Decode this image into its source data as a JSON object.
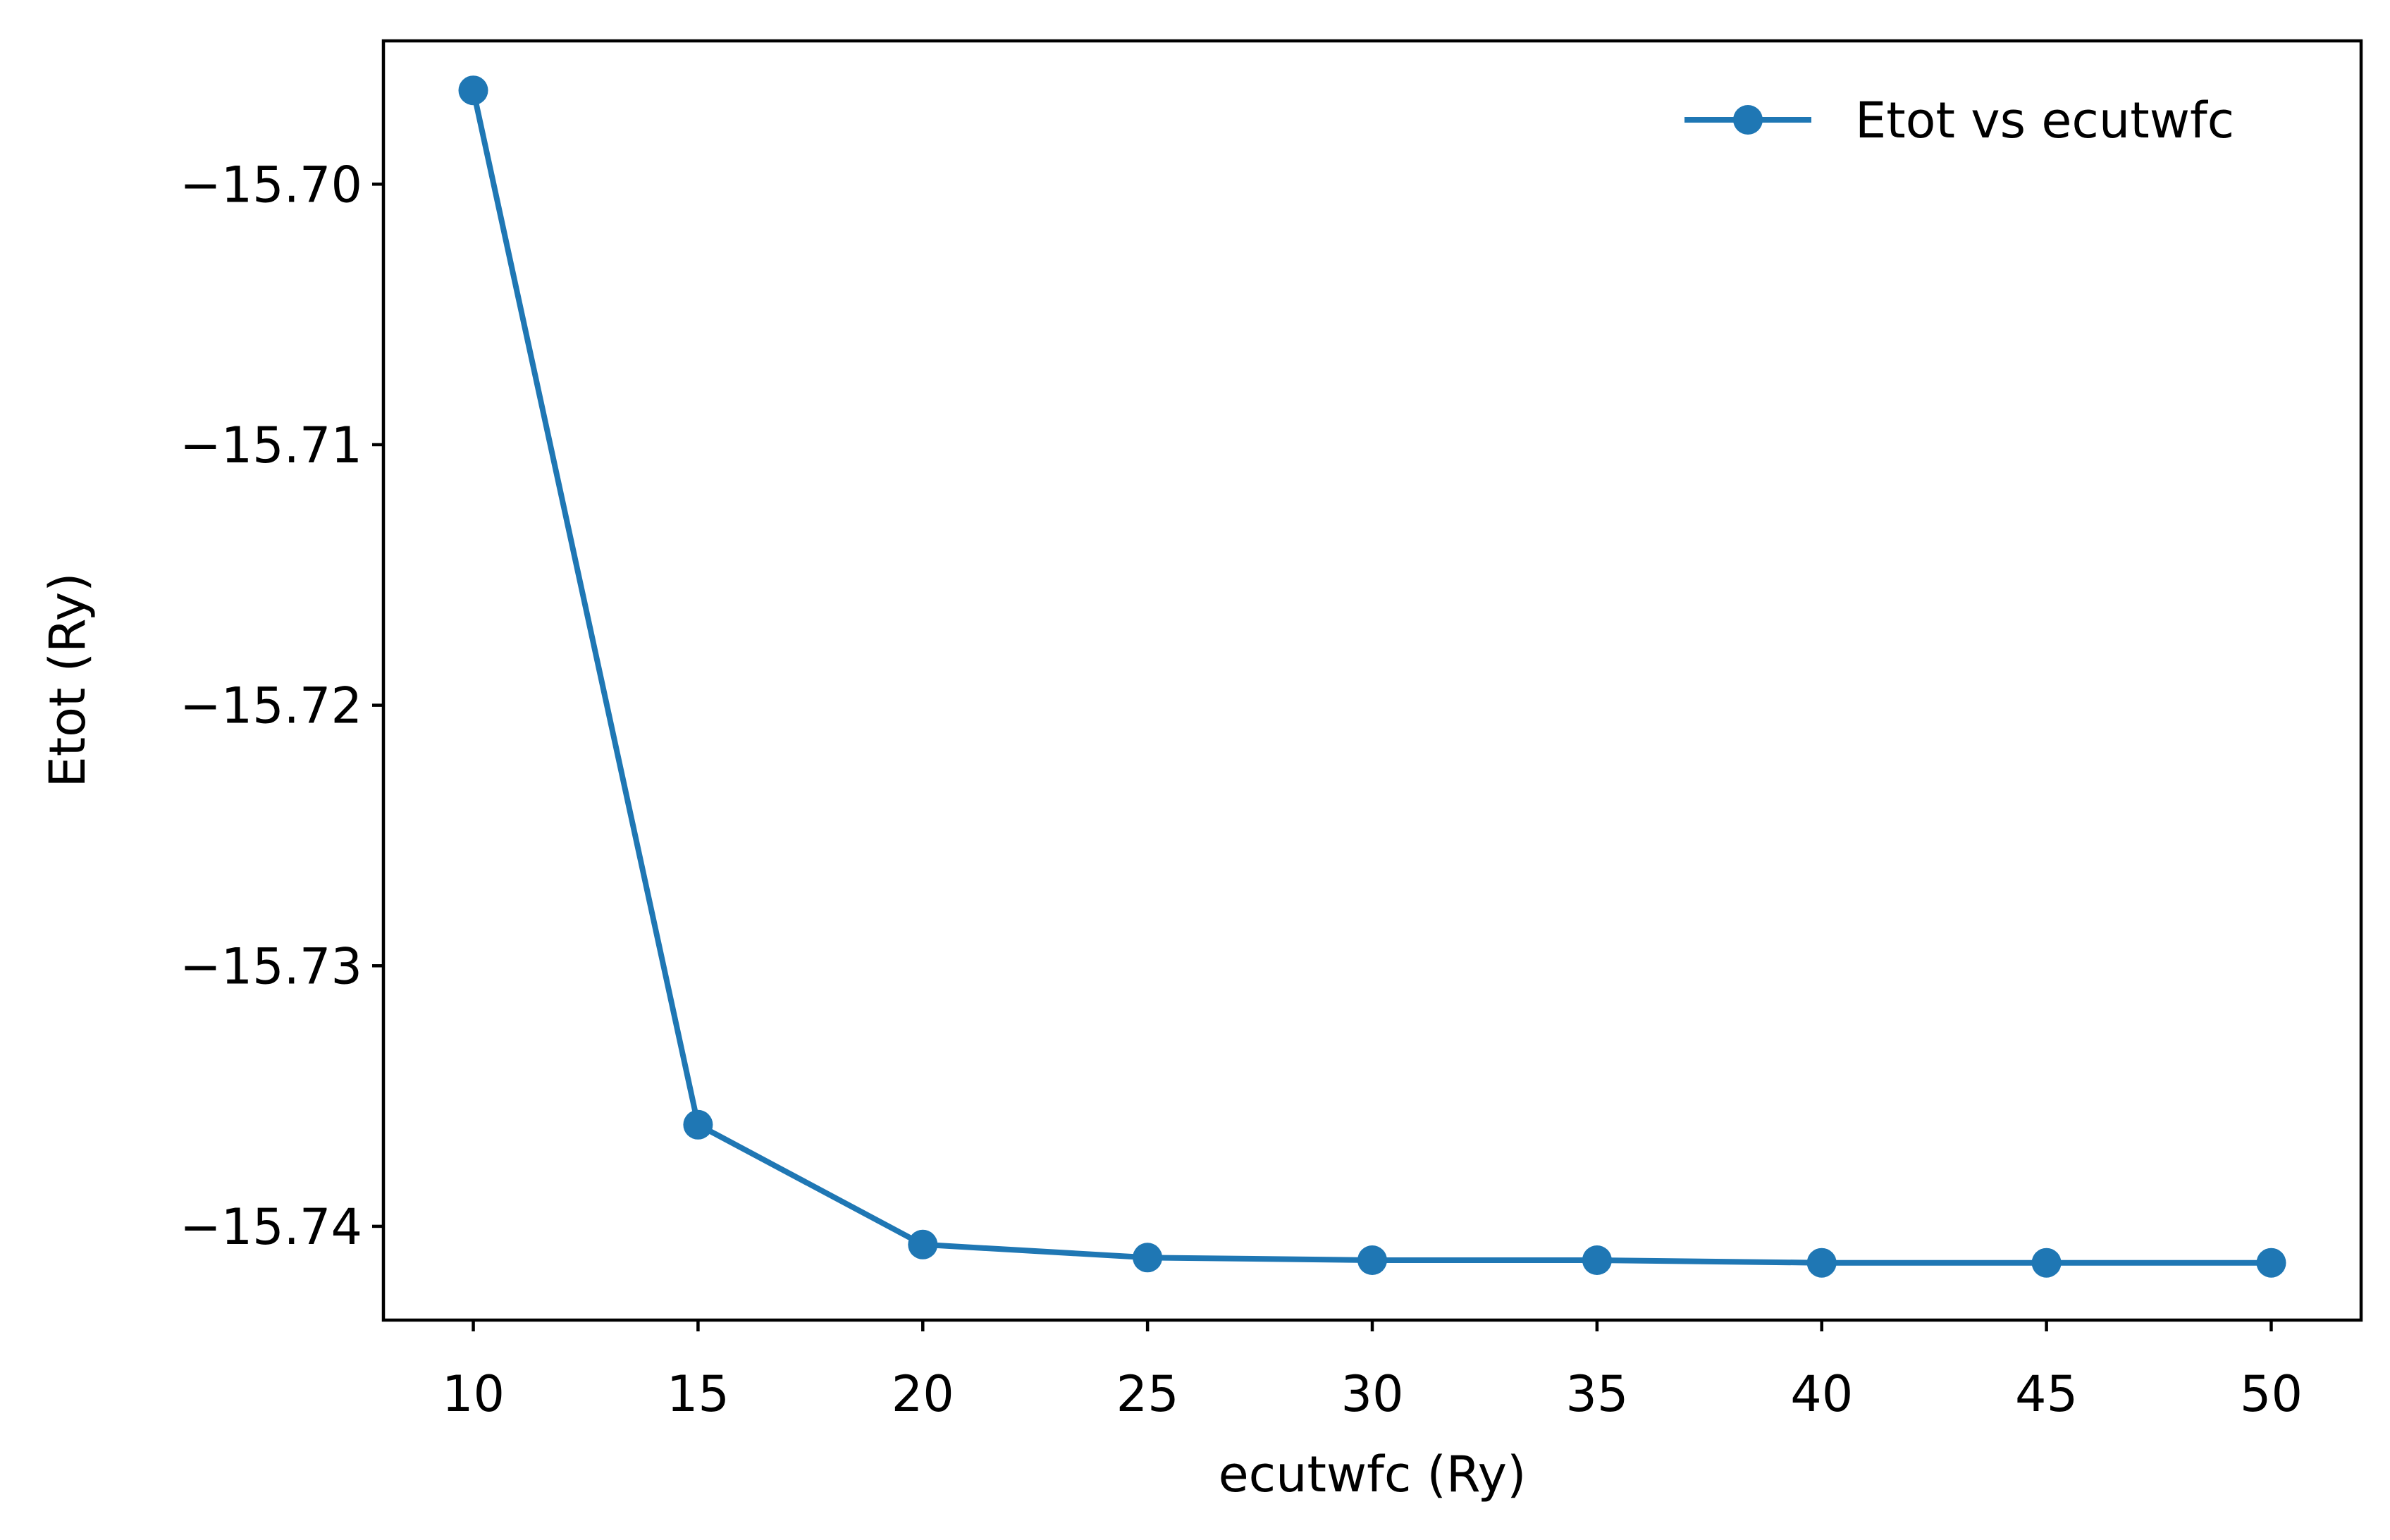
{
  "chart_data": {
    "type": "line",
    "title": "",
    "xlabel": "ecutwfc (Ry)",
    "ylabel": "Etot (Ry)",
    "xlim": [
      8,
      52
    ],
    "ylim": [
      -15.7436,
      -15.6945
    ],
    "xticks": [
      10,
      15,
      20,
      25,
      30,
      35,
      40,
      45,
      50
    ],
    "xtick_labels": [
      "10",
      "15",
      "20",
      "25",
      "30",
      "35",
      "40",
      "45",
      "50"
    ],
    "yticks": [
      -15.7,
      -15.71,
      -15.72,
      -15.73,
      -15.74
    ],
    "ytick_labels": [
      "−15.70",
      "−15.71",
      "−15.72",
      "−15.73",
      "−15.74"
    ],
    "grid": false,
    "legend_position": "top-right",
    "color": "#1f77b4",
    "series": [
      {
        "name": "Etot vs ecutwfc",
        "marker": "circle",
        "x": [
          10,
          15,
          20,
          25,
          30,
          35,
          40,
          45,
          50
        ],
        "y": [
          -15.6964,
          -15.7361,
          -15.7407,
          -15.7412,
          -15.7413,
          -15.7413,
          -15.7414,
          -15.7414,
          -15.7414
        ]
      }
    ]
  }
}
